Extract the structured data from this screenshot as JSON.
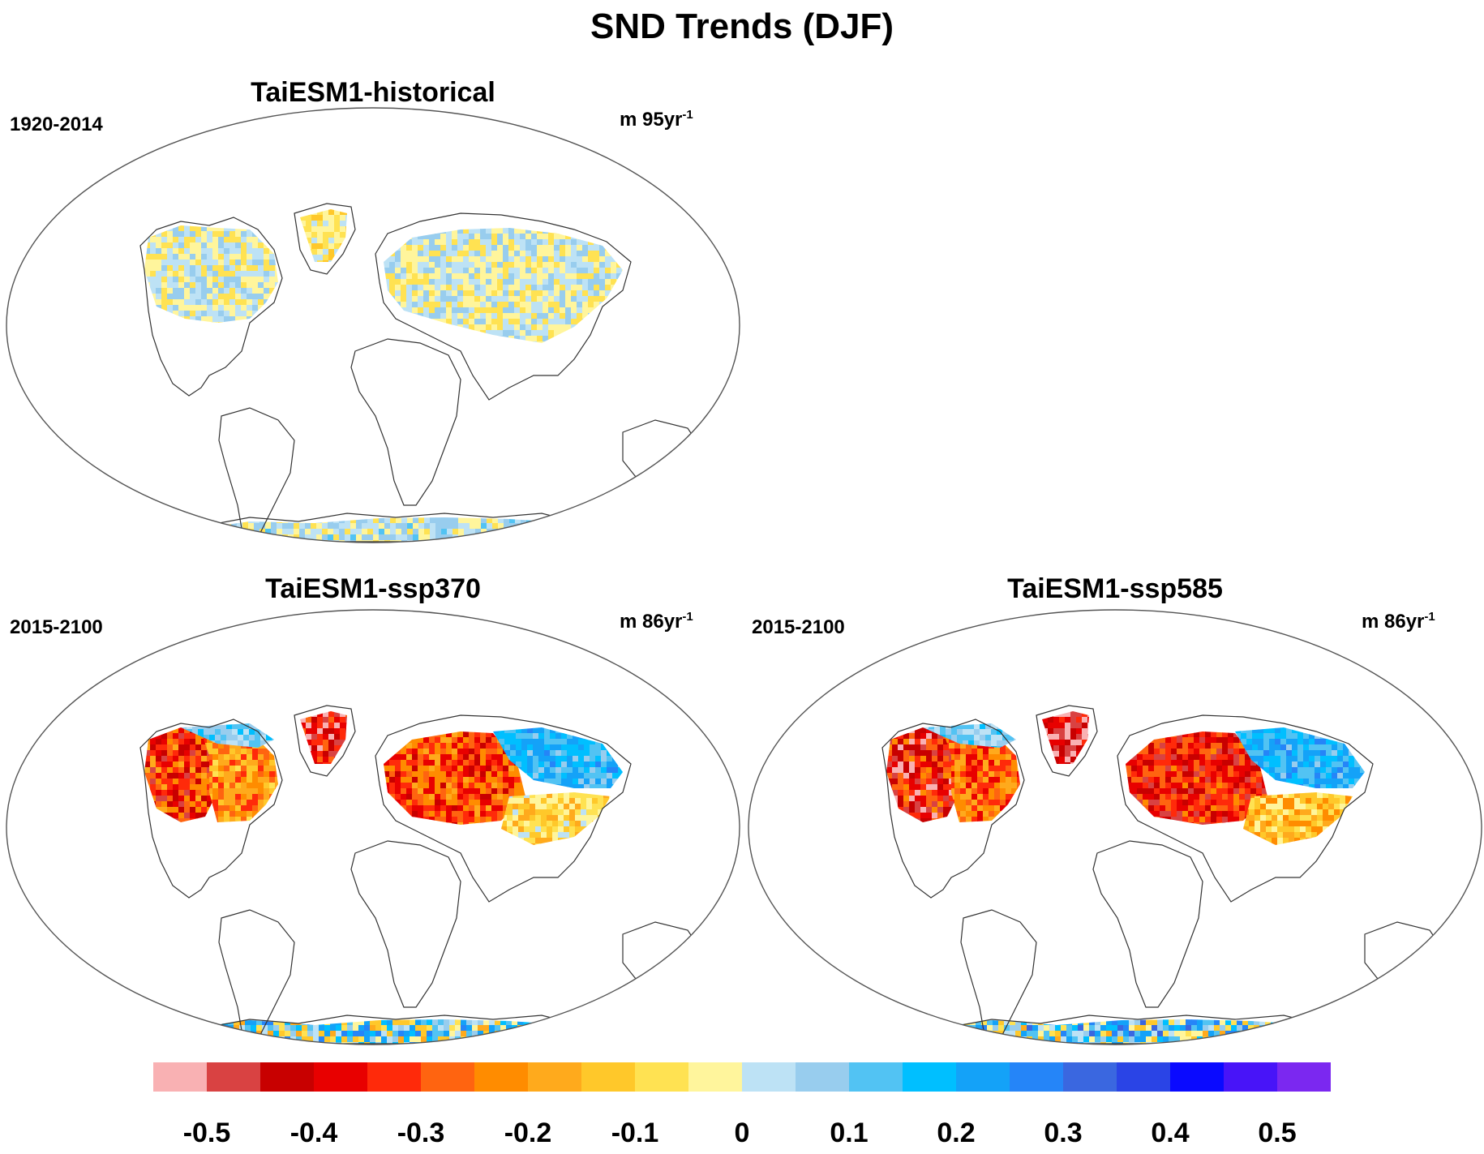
{
  "title": "SND Trends (DJF)",
  "panels": [
    {
      "id": "historical",
      "title": "TaiESM1-historical",
      "period": "1920-2014",
      "units_base": "m 95yr",
      "units_exp": "-1"
    },
    {
      "id": "ssp370",
      "title": "TaiESM1-ssp370",
      "period": "2015-2100",
      "units_base": "m 86yr",
      "units_exp": "-1"
    },
    {
      "id": "ssp585",
      "title": "TaiESM1-ssp585",
      "period": "2015-2100",
      "units_base": "m 86yr",
      "units_exp": "-1"
    }
  ],
  "colorbar": {
    "colors": [
      "#f9b1b3",
      "#d94242",
      "#c80000",
      "#e80000",
      "#ff2a0a",
      "#ff6410",
      "#ff8c00",
      "#ffaa1c",
      "#ffc82a",
      "#ffe252",
      "#fff59c",
      "#bde2f5",
      "#98cdee",
      "#52c3f3",
      "#00bfff",
      "#14a2f8",
      "#2585f8",
      "#3a67e0",
      "#2a44e6",
      "#0a0aff",
      "#4814f8",
      "#7b28f0"
    ],
    "labels": [
      "-0.5",
      "-0.4",
      "-0.3",
      "-0.2",
      "-0.1",
      "0",
      "0.1",
      "0.2",
      "0.3",
      "0.4",
      "0.5"
    ]
  },
  "chart_data": {
    "type": "heatmap",
    "title": "SND Trends (DJF)",
    "projection": "Robinson",
    "variable": "SND",
    "season": "DJF",
    "colorbar_range": [
      -0.55,
      0.55
    ],
    "colorbar_step": 0.05,
    "maps": [
      {
        "name": "TaiESM1-historical",
        "period": "1920-2014",
        "units": "m 95yr-1",
        "dominant_pattern": "weak mixed trends, mostly -0.1 to 0.1"
      },
      {
        "name": "TaiESM1-ssp370",
        "period": "2015-2100",
        "units": "m 86yr-1",
        "dominant_pattern": "strong negative trends over North America and Europe, positive over Siberia and interior Antarctica"
      },
      {
        "name": "TaiESM1-ssp585",
        "period": "2015-2100",
        "units": "m 86yr-1",
        "dominant_pattern": "stronger negative trends over North America and Europe, positive over Siberia and interior Antarctica"
      }
    ]
  }
}
